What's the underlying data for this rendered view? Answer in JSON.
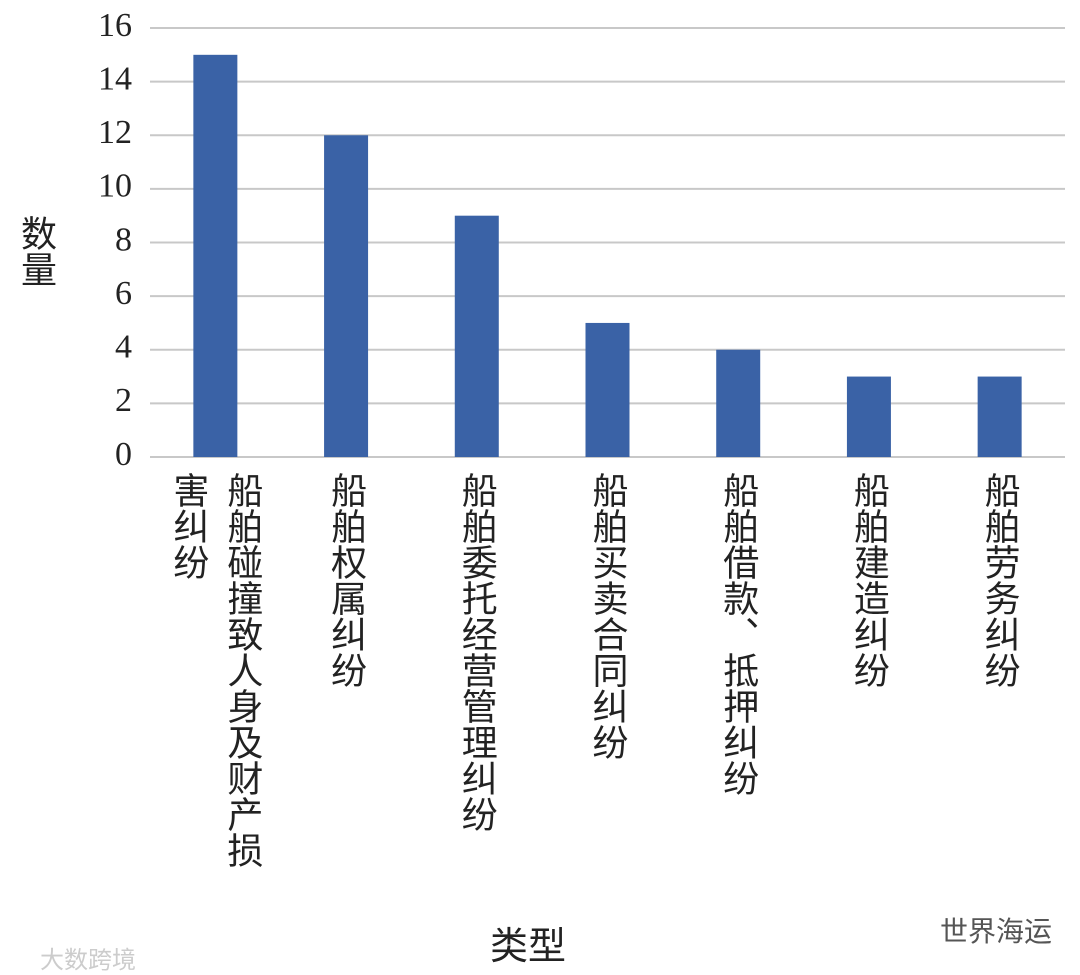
{
  "chart_data": {
    "type": "bar",
    "categories": [
      "船舶碰撞致人身及财产损害纠纷",
      "船舶权属纠纷",
      "船舶委托经营管理纠纷",
      "船舶买卖合同纠纷",
      "船舶借款、抵押纠纷",
      "船舶建造纠纷",
      "船舶劳务纠纷"
    ],
    "values": [
      15,
      12,
      9,
      5,
      4,
      3,
      3
    ],
    "color": "#3a62a6",
    "ylabel": "数量",
    "xlabel": "类型",
    "ylim": [
      0,
      16
    ],
    "yticks": [
      0,
      2,
      4,
      6,
      8,
      10,
      12,
      14,
      16
    ],
    "grid": true
  },
  "watermarks": [
    "大数跨境",
    "世界海运"
  ]
}
